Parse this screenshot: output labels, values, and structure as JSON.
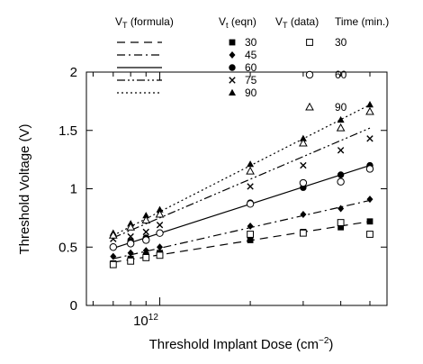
{
  "chart_data": {
    "type": "scatter",
    "xlabel": "Threshold Implant Dose (cm",
    "xlabel_sup": "−2",
    "xlabel_end": ")",
    "ylabel": "Threshold Voltage (V)",
    "x_scale": "log",
    "xlim": [
      570000000000.0,
      5700000000000.0
    ],
    "ylim": [
      0,
      2
    ],
    "y_ticks": [
      0,
      0.5,
      1,
      1.5,
      2
    ],
    "y_tick_labels": [
      "0",
      "0.5",
      "1",
      "1.5",
      "2"
    ],
    "x_ticks": [
      1000000000000.0
    ],
    "x_tick_label_base": "10",
    "x_tick_label_exp": "12",
    "grid": false,
    "legend_headers": {
      "formula_main": "V",
      "formula_sub": "T",
      "formula_rest": " (formula)",
      "eqn_main": "V",
      "eqn_sub": "t",
      "eqn_rest": " (eqn)",
      "data_main": "V",
      "data_sub": "T",
      "data_rest": " (data)",
      "time": "Time (min.)"
    },
    "series": [
      {
        "time": "30",
        "line_style": "long-dash",
        "eqn_marker": "filled-square",
        "data_marker": "open-square",
        "line": {
          "x": [
            700000000000.0,
            5000000000000.0
          ],
          "y": [
            0.37,
            0.72
          ]
        },
        "eqn_points": {
          "x": [
            700000000000.0,
            800000000000.0,
            900000000000.0,
            1000000000000.0,
            2000000000000.0,
            3000000000000.0,
            4000000000000.0,
            5000000000000.0
          ],
          "y": [
            0.36,
            0.4,
            0.43,
            0.45,
            0.56,
            0.63,
            0.67,
            0.72
          ]
        },
        "data_points": {
          "x": [
            700000000000.0,
            800000000000.0,
            900000000000.0,
            1000000000000.0,
            2000000000000.0,
            3000000000000.0,
            4000000000000.0,
            5000000000000.0
          ],
          "y": [
            0.35,
            0.38,
            0.41,
            0.43,
            0.61,
            0.62,
            0.71,
            0.61
          ]
        },
        "legend_data_label": "30"
      },
      {
        "time": "45",
        "line_style": "dash-dot",
        "eqn_marker": "filled-diamond",
        "data_marker": null,
        "line": {
          "x": [
            700000000000.0,
            5000000000000.0
          ],
          "y": [
            0.4,
            0.9
          ]
        },
        "eqn_points": {
          "x": [
            700000000000.0,
            800000000000.0,
            900000000000.0,
            1000000000000.0,
            2000000000000.0,
            3000000000000.0,
            4000000000000.0,
            5000000000000.0
          ],
          "y": [
            0.42,
            0.45,
            0.47,
            0.5,
            0.68,
            0.78,
            0.83,
            0.91
          ]
        },
        "data_points": {
          "x": [],
          "y": []
        },
        "legend_data_label": ""
      },
      {
        "time": "60",
        "line_style": "solid",
        "eqn_marker": "filled-circle",
        "data_marker": "open-circle",
        "line": {
          "x": [
            700000000000.0,
            5000000000000.0
          ],
          "y": [
            0.49,
            1.2
          ]
        },
        "eqn_points": {
          "x": [
            700000000000.0,
            800000000000.0,
            900000000000.0,
            1000000000000.0,
            2000000000000.0,
            3000000000000.0,
            4000000000000.0,
            5000000000000.0
          ],
          "y": [
            0.5,
            0.55,
            0.58,
            0.62,
            0.88,
            1.01,
            1.12,
            1.2
          ]
        },
        "data_points": {
          "x": [
            700000000000.0,
            800000000000.0,
            900000000000.0,
            1000000000000.0,
            2000000000000.0,
            3000000000000.0,
            4000000000000.0,
            5000000000000.0
          ],
          "y": [
            0.5,
            0.53,
            0.56,
            0.62,
            0.87,
            1.05,
            1.06,
            1.17
          ]
        },
        "legend_data_label": "60"
      },
      {
        "time": "75",
        "line_style": "dash-dot-dot",
        "eqn_marker": "x",
        "data_marker": null,
        "line": {
          "x": [
            700000000000.0,
            5000000000000.0
          ],
          "y": [
            0.58,
            1.52
          ]
        },
        "eqn_points": {
          "x": [
            700000000000.0,
            800000000000.0,
            900000000000.0,
            1000000000000.0,
            2000000000000.0,
            3000000000000.0,
            4000000000000.0,
            5000000000000.0
          ],
          "y": [
            0.57,
            0.59,
            0.63,
            0.69,
            1.02,
            1.2,
            1.33,
            1.43
          ]
        },
        "data_points": {
          "x": [],
          "y": []
        },
        "legend_data_label": ""
      },
      {
        "time": "90",
        "line_style": "dotted",
        "eqn_marker": "filled-triangle",
        "data_marker": "open-triangle",
        "line": {
          "x": [
            700000000000.0,
            5000000000000.0
          ],
          "y": [
            0.6,
            1.72
          ]
        },
        "eqn_points": {
          "x": [
            700000000000.0,
            800000000000.0,
            900000000000.0,
            1000000000000.0,
            2000000000000.0,
            3000000000000.0,
            4000000000000.0,
            5000000000000.0
          ],
          "y": [
            0.62,
            0.7,
            0.77,
            0.82,
            1.21,
            1.43,
            1.59,
            1.72
          ]
        },
        "data_points": {
          "x": [
            700000000000.0,
            800000000000.0,
            900000000000.0,
            1000000000000.0,
            2000000000000.0,
            3000000000000.0,
            4000000000000.0,
            5000000000000.0
          ],
          "y": [
            0.6,
            0.67,
            0.73,
            0.78,
            1.15,
            1.39,
            1.52,
            1.66
          ]
        },
        "legend_data_label": "90"
      }
    ]
  }
}
